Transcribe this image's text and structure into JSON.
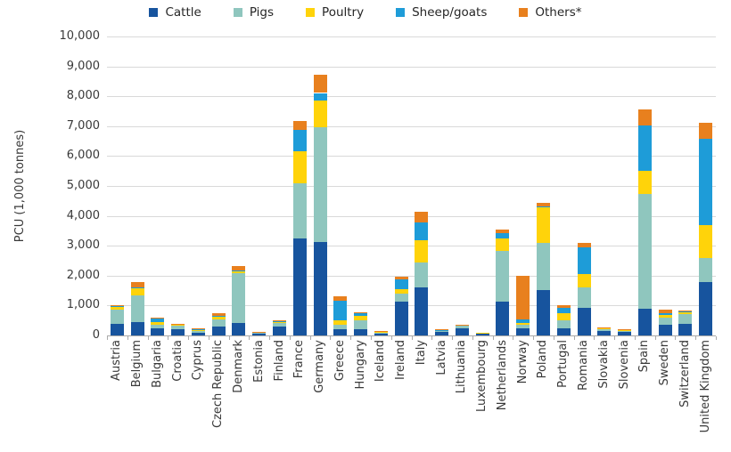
{
  "chart_data": {
    "type": "bar",
    "stacked": true,
    "title": "",
    "xlabel": "",
    "ylabel": "PCU (1,000 tonnes)",
    "ylim": [
      0,
      10000
    ],
    "ytick_step": 1000,
    "grid": true,
    "legend_position": "top",
    "categories": [
      "Austria",
      "Belgium",
      "Bulgaria",
      "Croatia",
      "Cyprus",
      "Czech Republic",
      "Denmark",
      "Estonia",
      "Finland",
      "France",
      "Germany",
      "Greece",
      "Hungary",
      "Iceland",
      "Ireland",
      "Italy",
      "Latvia",
      "Lithuania",
      "Luxembourg",
      "Netherlands",
      "Norway",
      "Poland",
      "Portugal",
      "Romania",
      "Slovakia",
      "Slovenia",
      "Spain",
      "Sweden",
      "Switzerland",
      "United Kingdom"
    ],
    "series": [
      {
        "name": "Cattle",
        "color": "#17549E",
        "values": [
          400,
          450,
          250,
          220,
          90,
          300,
          420,
          70,
          300,
          3235,
          3135,
          200,
          200,
          80,
          1145,
          1595,
          110,
          250,
          70,
          1145,
          250,
          1515,
          250,
          915,
          150,
          120,
          895,
          350,
          400,
          1790
        ]
      },
      {
        "name": "Pigs",
        "color": "#8FC6BE",
        "values": [
          450,
          895,
          100,
          110,
          60,
          250,
          1670,
          40,
          120,
          1840,
          3830,
          150,
          300,
          20,
          250,
          845,
          45,
          70,
          10,
          1690,
          100,
          1575,
          250,
          680,
          55,
          40,
          3830,
          240,
          300,
          795
        ]
      },
      {
        "name": "Poultry",
        "color": "#FFD30A",
        "values": [
          100,
          250,
          100,
          50,
          25,
          100,
          80,
          10,
          60,
          1095,
          895,
          150,
          150,
          10,
          150,
          745,
          25,
          25,
          3,
          420,
          80,
          1215,
          250,
          450,
          40,
          35,
          795,
          90,
          60,
          1095
        ]
      },
      {
        "name": "Sheep/goats",
        "color": "#1E9CD8",
        "values": [
          40,
          15,
          150,
          15,
          60,
          10,
          10,
          5,
          10,
          700,
          250,
          650,
          110,
          40,
          330,
          600,
          10,
          10,
          2,
          160,
          120,
          10,
          170,
          895,
          25,
          10,
          1495,
          50,
          40,
          2885
        ]
      },
      {
        "name": "Others*",
        "color": "#E8801E",
        "values": [
          10,
          180,
          10,
          5,
          5,
          90,
          130,
          5,
          10,
          295,
          620,
          145,
          10,
          5,
          90,
          345,
          5,
          5,
          0,
          120,
          1440,
          125,
          80,
          165,
          5,
          5,
          550,
          140,
          20,
          550
        ]
      }
    ],
    "colors": {
      "grid": "#d9d9d9",
      "axis": "#a9a9a9",
      "text": "#393939"
    }
  }
}
